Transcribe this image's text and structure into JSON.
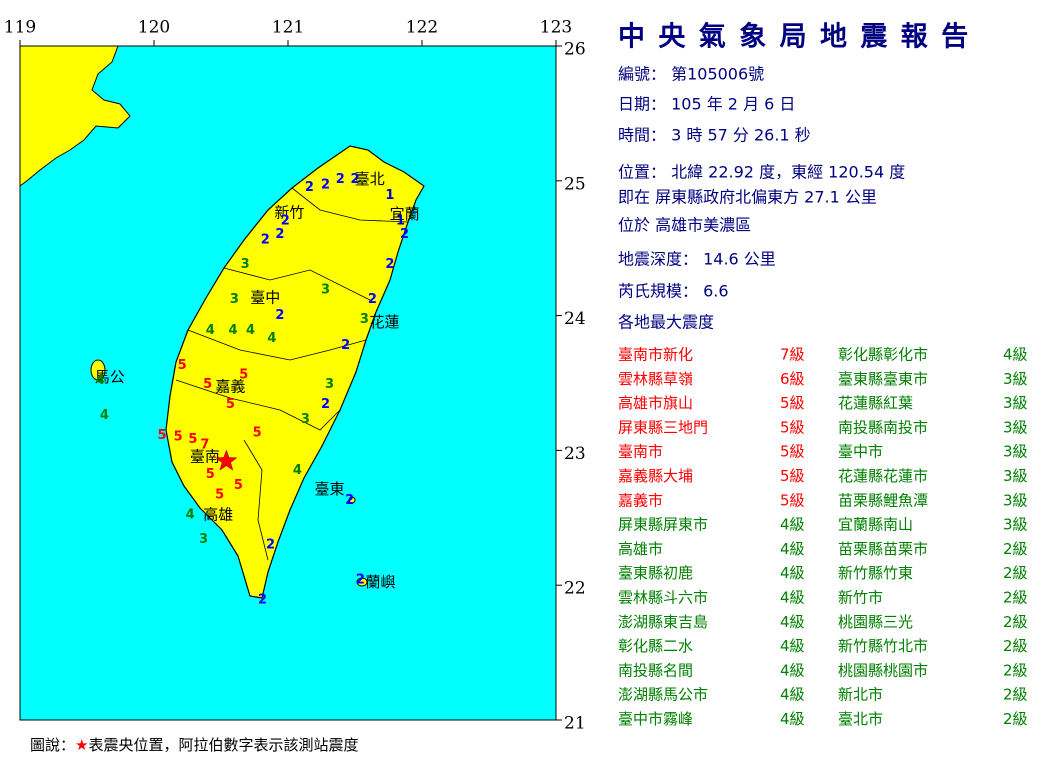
{
  "map": {
    "xlim": [
      119,
      123
    ],
    "ylim": [
      21,
      26
    ],
    "xticks": [
      119,
      120,
      121,
      122,
      123
    ],
    "yticks": [
      21,
      22,
      23,
      24,
      25,
      26
    ],
    "epicenter": {
      "lon": 120.54,
      "lat": 22.92,
      "color": "#ff0000"
    },
    "intensity_colors": {
      "1": "#0000cc",
      "2": "#0000ff",
      "3": "#008000",
      "4": "#008000",
      "5": "#ff0000",
      "6": "#ff0000",
      "7": "#ff0000"
    },
    "cities": [
      {
        "name": "臺北",
        "lon": 121.61,
        "lat": 25.01
      },
      {
        "name": "新竹",
        "lon": 121.01,
        "lat": 24.76
      },
      {
        "name": "宜蘭",
        "lon": 121.87,
        "lat": 24.75
      },
      {
        "name": "臺中",
        "lon": 120.83,
        "lat": 24.13
      },
      {
        "name": "花蓮",
        "lon": 121.72,
        "lat": 23.95
      },
      {
        "name": "嘉義",
        "lon": 120.57,
        "lat": 23.47
      },
      {
        "name": "臺南",
        "lon": 120.38,
        "lat": 22.95
      },
      {
        "name": "高雄",
        "lon": 120.48,
        "lat": 22.52
      },
      {
        "name": "臺東",
        "lon": 121.31,
        "lat": 22.71
      },
      {
        "name": "馬公",
        "lon": 119.67,
        "lat": 23.54
      },
      {
        "name": "蘭嶼",
        "lon": 121.69,
        "lat": 22.02
      }
    ],
    "stations": [
      {
        "lon": 120.06,
        "lat": 23.11,
        "value": 5
      },
      {
        "lon": 120.18,
        "lat": 23.1,
        "value": 5
      },
      {
        "lon": 120.29,
        "lat": 23.08,
        "value": 5
      },
      {
        "lon": 120.38,
        "lat": 23.04,
        "value": 7
      },
      {
        "lon": 120.21,
        "lat": 23.63,
        "value": 5
      },
      {
        "lon": 120.4,
        "lat": 23.49,
        "value": 5
      },
      {
        "lon": 120.67,
        "lat": 23.56,
        "value": 5
      },
      {
        "lon": 120.57,
        "lat": 23.34,
        "value": 5
      },
      {
        "lon": 120.77,
        "lat": 23.13,
        "value": 5
      },
      {
        "lon": 120.63,
        "lat": 22.74,
        "value": 5
      },
      {
        "lon": 120.42,
        "lat": 22.82,
        "value": 5
      },
      {
        "lon": 120.49,
        "lat": 22.67,
        "value": 5
      },
      {
        "lon": 120.27,
        "lat": 22.52,
        "value": 4
      },
      {
        "lon": 120.37,
        "lat": 22.34,
        "value": 3
      },
      {
        "lon": 120.87,
        "lat": 22.3,
        "value": 2
      },
      {
        "lon": 120.81,
        "lat": 21.89,
        "value": 2
      },
      {
        "lon": 121.07,
        "lat": 22.85,
        "value": 4
      },
      {
        "lon": 121.13,
        "lat": 23.23,
        "value": 3
      },
      {
        "lon": 121.31,
        "lat": 23.49,
        "value": 3
      },
      {
        "lon": 121.28,
        "lat": 23.34,
        "value": 2
      },
      {
        "lon": 121.43,
        "lat": 23.78,
        "value": 2
      },
      {
        "lon": 121.57,
        "lat": 23.97,
        "value": 3
      },
      {
        "lon": 121.63,
        "lat": 24.12,
        "value": 2
      },
      {
        "lon": 121.76,
        "lat": 24.38,
        "value": 2
      },
      {
        "lon": 121.87,
        "lat": 24.6,
        "value": 2
      },
      {
        "lon": 121.84,
        "lat": 24.7,
        "value": 1
      },
      {
        "lon": 121.76,
        "lat": 24.89,
        "value": 1
      },
      {
        "lon": 121.5,
        "lat": 25.01,
        "value": 2
      },
      {
        "lon": 121.39,
        "lat": 25.01,
        "value": 2
      },
      {
        "lon": 121.28,
        "lat": 24.97,
        "value": 2
      },
      {
        "lon": 121.16,
        "lat": 24.95,
        "value": 2
      },
      {
        "lon": 120.98,
        "lat": 24.7,
        "value": 2
      },
      {
        "lon": 120.83,
        "lat": 24.56,
        "value": 2
      },
      {
        "lon": 120.94,
        "lat": 24.6,
        "value": 2
      },
      {
        "lon": 120.68,
        "lat": 24.38,
        "value": 3
      },
      {
        "lon": 120.6,
        "lat": 24.12,
        "value": 3
      },
      {
        "lon": 120.59,
        "lat": 23.89,
        "value": 4
      },
      {
        "lon": 120.72,
        "lat": 23.89,
        "value": 4
      },
      {
        "lon": 120.94,
        "lat": 24.0,
        "value": 2
      },
      {
        "lon": 120.88,
        "lat": 23.83,
        "value": 4
      },
      {
        "lon": 120.42,
        "lat": 23.89,
        "value": 4
      },
      {
        "lon": 119.6,
        "lat": 23.52,
        "value": 4
      },
      {
        "lon": 119.63,
        "lat": 23.26,
        "value": 4
      },
      {
        "lon": 121.28,
        "lat": 24.19,
        "value": 3
      },
      {
        "lon": 121.54,
        "lat": 22.04,
        "value": 2
      },
      {
        "lon": 121.46,
        "lat": 22.63,
        "value": 2
      }
    ],
    "legend": [
      "圖說：",
      "★",
      "表震央位置，阿拉伯數字表示該測站震度"
    ]
  },
  "report": {
    "title": "中 央 氣 象 局 地 震 報 告",
    "lines": [
      "編號： 第105006號",
      "日期： 105 年 2 月 6 日",
      "時間： 3 時 57 分 26.1 秒",
      "位置： 北緯 22.92 度，東經 120.54 度",
      "即在 屏東縣政府北偏東方 27.1 公里",
      "位於 高雄市美濃區",
      "地震深度： 14.6 公里",
      "芮氏規模： 6.6",
      "各地最大震度"
    ],
    "intensity_table": [
      [
        {
          "place": "臺南市新化",
          "level": "7級",
          "color": "#ff0000"
        },
        {
          "place": "雲林縣草嶺",
          "level": "6級",
          "color": "#ff0000"
        },
        {
          "place": "高雄市旗山",
          "level": "5級",
          "color": "#ff0000"
        },
        {
          "place": "屏東縣三地門",
          "level": "5級",
          "color": "#ff0000"
        },
        {
          "place": "臺南市",
          "level": "5級",
          "color": "#ff0000"
        },
        {
          "place": "嘉義縣大埔",
          "level": "5級",
          "color": "#ff0000"
        },
        {
          "place": "嘉義市",
          "level": "5級",
          "color": "#ff0000"
        },
        {
          "place": "屏東縣屏東市",
          "level": "4級",
          "color": "#008000"
        },
        {
          "place": "高雄市",
          "level": "4級",
          "color": "#008000"
        },
        {
          "place": "臺東縣初鹿",
          "level": "4級",
          "color": "#008000"
        },
        {
          "place": "雲林縣斗六市",
          "level": "4級",
          "color": "#008000"
        },
        {
          "place": "澎湖縣東吉島",
          "level": "4級",
          "color": "#008000"
        },
        {
          "place": "彰化縣二水",
          "level": "4級",
          "color": "#008000"
        },
        {
          "place": "南投縣名間",
          "level": "4級",
          "color": "#008000"
        },
        {
          "place": "澎湖縣馬公市",
          "level": "4級",
          "color": "#008000"
        },
        {
          "place": "臺中市霧峰",
          "level": "4級",
          "color": "#008000"
        }
      ],
      [
        {
          "place": "彰化縣彰化市",
          "level": "4級",
          "color": "#008000"
        },
        {
          "place": "臺東縣臺東市",
          "level": "3級",
          "color": "#008000"
        },
        {
          "place": "花蓮縣紅葉",
          "level": "3級",
          "color": "#008000"
        },
        {
          "place": "南投縣南投市",
          "level": "3級",
          "color": "#008000"
        },
        {
          "place": "臺中市",
          "level": "3級",
          "color": "#008000"
        },
        {
          "place": "花蓮縣花蓮市",
          "level": "3級",
          "color": "#008000"
        },
        {
          "place": "苗栗縣鯉魚潭",
          "level": "3級",
          "color": "#008000"
        },
        {
          "place": "宜蘭縣南山",
          "level": "3級",
          "color": "#008000"
        },
        {
          "place": "苗栗縣苗栗市",
          "level": "2級",
          "color": "#008000"
        },
        {
          "place": "新竹縣竹東",
          "level": "2級",
          "color": "#008000"
        },
        {
          "place": "新竹市",
          "level": "2級",
          "color": "#008000"
        },
        {
          "place": "桃園縣三光",
          "level": "2級",
          "color": "#008000"
        },
        {
          "place": "新竹縣竹北市",
          "level": "2級",
          "color": "#008000"
        },
        {
          "place": "桃園縣桃園市",
          "level": "2級",
          "color": "#008000"
        },
        {
          "place": "新北市",
          "level": "2級",
          "color": "#008000"
        },
        {
          "place": "臺北市",
          "level": "2級",
          "color": "#008000"
        }
      ]
    ]
  }
}
